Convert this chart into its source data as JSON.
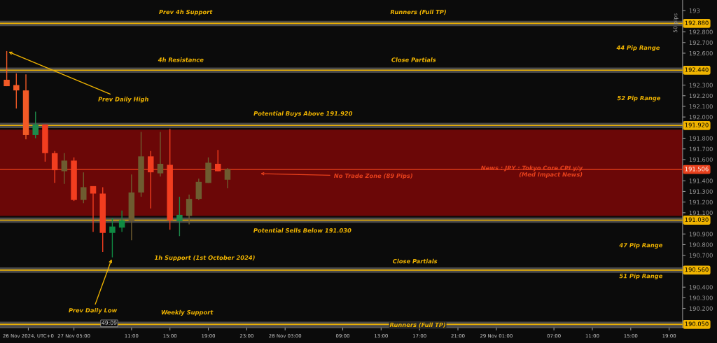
{
  "chart_data": {
    "type": "candlestick",
    "x": [
      "2024-11-26T22:00",
      "2024-11-26T23:00",
      "2024-11-27T00:00",
      "2024-11-27T01:00",
      "2024-11-27T02:00",
      "2024-11-27T03:00",
      "2024-11-27T04:00",
      "2024-11-27T05:00",
      "2024-11-27T06:00",
      "2024-11-27T07:00",
      "2024-11-27T08:00",
      "2024-11-27T09:00",
      "2024-11-27T10:00",
      "2024-11-27T11:00",
      "2024-11-27T12:00",
      "2024-11-27T13:00",
      "2024-11-27T14:00",
      "2024-11-27T15:00",
      "2024-11-27T16:00",
      "2024-11-27T17:00",
      "2024-11-27T18:00",
      "2024-11-27T19:00",
      "2024-11-27T20:00",
      "2024-11-27T21:00"
    ],
    "ohlc": [
      [
        192.35,
        192.62,
        192.29,
        192.29
      ],
      [
        192.3,
        192.41,
        192.08,
        192.25
      ],
      [
        192.25,
        192.4,
        191.79,
        191.83
      ],
      [
        191.83,
        192.05,
        191.8,
        191.93
      ],
      [
        191.93,
        191.93,
        191.58,
        191.66
      ],
      [
        191.66,
        191.68,
        191.38,
        191.5
      ],
      [
        191.49,
        191.66,
        191.37,
        191.59
      ],
      [
        191.59,
        191.62,
        191.21,
        191.22
      ],
      [
        191.22,
        191.48,
        191.19,
        191.34
      ],
      [
        191.35,
        191.35,
        190.92,
        191.28
      ],
      [
        191.28,
        191.34,
        190.73,
        190.91
      ],
      [
        190.91,
        191.05,
        190.68,
        190.97
      ],
      [
        190.96,
        191.12,
        190.92,
        191.03
      ],
      [
        191.02,
        191.46,
        190.84,
        191.29
      ],
      [
        191.29,
        191.86,
        191.25,
        191.63
      ],
      [
        191.63,
        191.68,
        191.14,
        191.48
      ],
      [
        191.47,
        191.86,
        191.44,
        191.56
      ],
      [
        191.55,
        191.89,
        190.94,
        191.03
      ],
      [
        191.02,
        191.25,
        190.88,
        191.08
      ],
      [
        191.07,
        191.27,
        190.99,
        191.23
      ],
      [
        191.23,
        191.42,
        191.22,
        191.39
      ],
      [
        191.38,
        191.62,
        191.38,
        191.57
      ],
      [
        191.56,
        191.69,
        191.49,
        191.49
      ],
      [
        191.41,
        191.52,
        191.33,
        191.51
      ]
    ],
    "colors": [
      "#f25a26",
      "#f25a26",
      "#f25a26",
      "#1e8a4a",
      "#f23d1f",
      "#f23d1f",
      "#6e5c30",
      "#f23d1f",
      "#6e5c30",
      "#f23d1f",
      "#f23d1f",
      "#0f8a42",
      "#0f8a42",
      "#6e5c30",
      "#6e5c30",
      "#f23d1f",
      "#6e5c30",
      "#f23d1f",
      "#1e8a4a",
      "#6e5c30",
      "#6e5c30",
      "#6e5c30",
      "#f23d1f",
      "#6e5c30"
    ],
    "xlim": [
      "2024-11-26T21:18",
      "2024-11-29T20:24"
    ],
    "xticks": [
      {
        "value": "2024-11-27T00:15",
        "label": "26 Nov 2024, UTC+0"
      },
      {
        "value": "2024-11-27T05:00",
        "label": "27 Nov 05:00"
      },
      {
        "value": "2024-11-27T11:00",
        "label": "11:00"
      },
      {
        "value": "2024-11-27T15:00",
        "label": "15:00"
      },
      {
        "value": "2024-11-27T19:00",
        "label": "19:00"
      },
      {
        "value": "2024-11-27T23:00",
        "label": "23:00"
      },
      {
        "value": "2024-11-28T03:00",
        "label": "28 Nov 03:00"
      },
      {
        "value": "2024-11-28T09:00",
        "label": "09:00"
      },
      {
        "value": "2024-11-28T13:00",
        "label": "13:00"
      },
      {
        "value": "2024-11-28T17:00",
        "label": "17:00"
      },
      {
        "value": "2024-11-28T21:00",
        "label": "21:00"
      },
      {
        "value": "2024-11-29T01:00",
        "label": "29 Nov 01:00"
      },
      {
        "value": "2024-11-29T07:00",
        "label": "07:00"
      },
      {
        "value": "2024-11-29T11:00",
        "label": "11:00"
      },
      {
        "value": "2024-11-29T15:00",
        "label": "15:00"
      },
      {
        "value": "2024-11-29T19:00",
        "label": "19:00"
      }
    ],
    "ylim": [
      190.02,
      193.1
    ],
    "yticks": [
      193,
      {
        "value": 192.8,
        "label": "192.800"
      },
      {
        "value": 192.7,
        "label": "192.700"
      },
      {
        "value": 192.6,
        "label": "192.600"
      },
      {
        "value": 192.3,
        "label": "192.300"
      },
      {
        "value": 192.2,
        "label": "192.200"
      },
      {
        "value": 192.1,
        "label": "192.100"
      },
      {
        "value": 192.0,
        "label": "192.000"
      },
      {
        "value": 191.8,
        "label": "191.800"
      },
      {
        "value": 191.7,
        "label": "191.700"
      },
      {
        "value": 191.6,
        "label": "191.600"
      },
      {
        "value": 191.4,
        "label": "191.400"
      },
      {
        "value": 191.3,
        "label": "191.300"
      },
      {
        "value": 191.2,
        "label": "191.200"
      },
      {
        "value": 191.1,
        "label": "191.100"
      },
      {
        "value": 190.9,
        "label": "190.900"
      },
      {
        "value": 190.8,
        "label": "190.800"
      },
      {
        "value": 190.7,
        "label": "190.700"
      },
      {
        "value": 190.4,
        "label": "190.400"
      },
      {
        "value": 190.3,
        "label": "190.300"
      },
      {
        "value": 190.2,
        "label": "190.200"
      }
    ],
    "ref_lines": [
      {
        "axis": "y",
        "value": 192.88,
        "label": "192.880",
        "color": "#f0b400"
      },
      {
        "axis": "y",
        "value": 192.44,
        "label": "192.440",
        "color": "#f0b400"
      },
      {
        "axis": "y",
        "value": 191.92,
        "label": "191.920",
        "color": "#f0b400"
      },
      {
        "axis": "y",
        "value": 191.506,
        "label": "191.506",
        "color": "#e8401c"
      },
      {
        "axis": "y",
        "value": 191.03,
        "label": "191.030",
        "color": "#f0b400"
      },
      {
        "axis": "y",
        "value": 190.56,
        "label": "190.560",
        "color": "#f0b400"
      },
      {
        "axis": "y",
        "value": 190.05,
        "label": "190.050",
        "color": "#f0b400"
      }
    ],
    "bands": [
      {
        "axis": "y",
        "from": 191.07,
        "to": 191.88,
        "color": "#6b0707"
      },
      {
        "axis": "y",
        "from": 192.855,
        "to": 192.905,
        "color": "#4a4a4a"
      },
      {
        "axis": "y",
        "from": 192.415,
        "to": 192.465,
        "color": "#4a4a4a"
      },
      {
        "axis": "y",
        "from": 191.895,
        "to": 191.945,
        "color": "#4a4a4a"
      },
      {
        "axis": "y",
        "from": 191.005,
        "to": 191.055,
        "color": "#4a4a4a"
      },
      {
        "axis": "y",
        "from": 190.535,
        "to": 190.585,
        "color": "#4a4a4a"
      },
      {
        "axis": "y",
        "from": 190.025,
        "to": 190.075,
        "color": "#4a4a4a"
      }
    ],
    "annotations": [
      "Prev 4h Support",
      "Runners (Full TP)",
      "44 Pip Range",
      "4h Resistance",
      "Close Partials",
      {
        "text": "Prev Daily High",
        "x": "2024-11-26T22:00",
        "y": 192.62
      },
      "52 Pip Range",
      "Potential Buys Above 191.920",
      "No Trade Zone (89 Pips)",
      "News : JPY : Tokyo Core CPI y/y\n(Med Impact News)",
      "Potential Sells Below 191.030",
      "47 Pip Range",
      "1h Support (1st October 2024)",
      "Close Partials",
      {
        "text": "Prev Daily Low",
        "x": "2024-11-27T09:00",
        "y": 190.68
      },
      "Weekly Support",
      "Runners (Full TP)",
      "51 Pip Range",
      "50 pips",
      "49:09"
    ]
  }
}
